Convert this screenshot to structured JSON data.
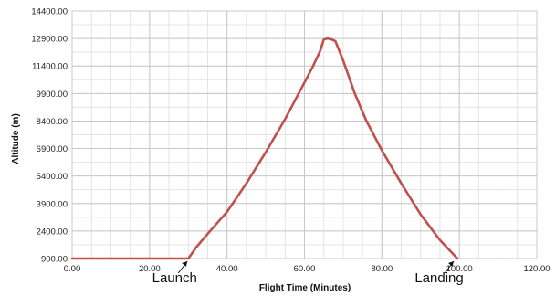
{
  "chart_data": {
    "type": "line",
    "title": "",
    "xlabel": "Flight Time (Minutes)",
    "ylabel": "Altitude (m)",
    "xlim": [
      0,
      120
    ],
    "ylim": [
      900,
      14400
    ],
    "x_ticks": [
      "0.00",
      "20.00",
      "40.00",
      "60.00",
      "80.00",
      "100.00",
      "120.00"
    ],
    "y_ticks": [
      "900.00",
      "2400.00",
      "3900.00",
      "5400.00",
      "6900.00",
      "8400.00",
      "9900.00",
      "11400.00",
      "12900.00",
      "14400.00"
    ],
    "grid": true,
    "line_color": "#c0504d",
    "series": [
      {
        "name": "",
        "x": [
          0,
          30,
          32,
          35,
          40,
          45,
          50,
          55,
          60,
          62,
          64,
          65,
          66,
          67,
          68,
          70,
          73,
          76,
          80,
          85,
          90,
          95,
          99.5
        ],
        "y": [
          900,
          900,
          1500,
          2250,
          3450,
          5000,
          6700,
          8500,
          10500,
          11300,
          12200,
          12850,
          12900,
          12850,
          12750,
          11700,
          9900,
          8400,
          6800,
          5000,
          3300,
          1900,
          900
        ]
      }
    ],
    "annotations": [
      {
        "text": "Launch",
        "x": 30,
        "y": 900
      },
      {
        "text": "Landing",
        "x": 99.5,
        "y": 900
      }
    ]
  }
}
